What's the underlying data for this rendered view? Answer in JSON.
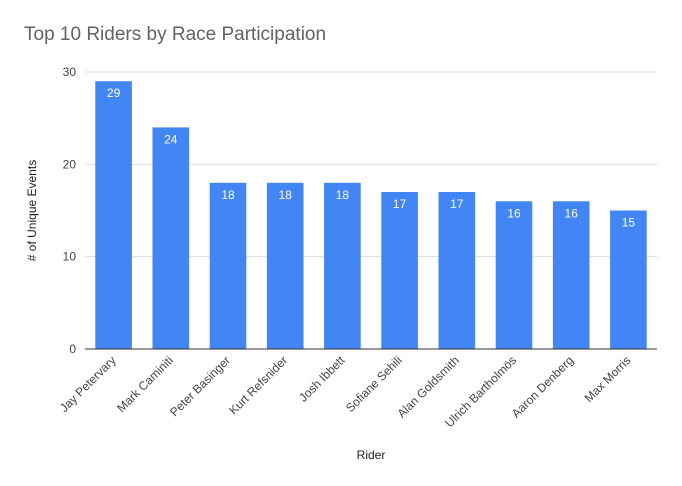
{
  "chart_data": {
    "type": "bar",
    "title": "Top 10 Riders by Race Participation",
    "xlabel": "Rider",
    "ylabel": "# of Unique Events",
    "categories": [
      "Jay Petervary",
      "Mark Caminiti",
      "Peter Basinger",
      "Kurt Refsnider",
      "Josh Ibbett",
      "Sofiane Sehili",
      "Alan Goldsmith",
      "Ulrich Bartholmös",
      "Aaron Denberg",
      "Max Morris"
    ],
    "values": [
      29,
      24,
      18,
      18,
      18,
      17,
      17,
      16,
      16,
      15
    ],
    "ylim": [
      0,
      30
    ],
    "yticks": [
      0,
      10,
      20,
      30
    ],
    "grid": true,
    "bar_color": "#4285f4",
    "data_labels": true
  }
}
